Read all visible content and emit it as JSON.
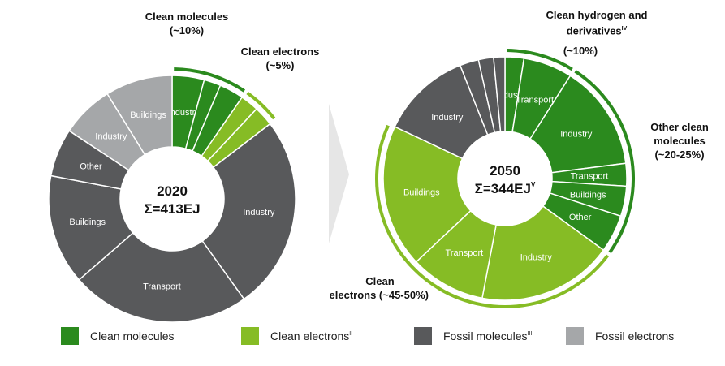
{
  "colors": {
    "clean_molecules": "#2b8a1e",
    "clean_electrons": "#86bc25",
    "fossil_molecules": "#58595b",
    "fossil_electrons": "#a5a7a9"
  },
  "chart_data": [
    {
      "type": "pie",
      "center_line1": "2020",
      "center_line2": "Σ=413EJ",
      "slices": [
        {
          "label": "Industry",
          "category": "clean_molecules",
          "value": 4.2
        },
        {
          "label": "",
          "category": "clean_molecules",
          "value": 2.2
        },
        {
          "label": "",
          "category": "clean_molecules",
          "value": 3.2
        },
        {
          "label": "",
          "category": "clean_electrons",
          "value": 2.4
        },
        {
          "label": "",
          "category": "clean_electrons",
          "value": 2.6
        },
        {
          "label": "Industry",
          "category": "fossil_molecules",
          "value": 25.5
        },
        {
          "label": "Transport",
          "category": "fossil_molecules",
          "value": 23.5
        },
        {
          "label": "Buildings",
          "category": "fossil_molecules",
          "value": 14.4
        },
        {
          "label": "Other",
          "category": "fossil_molecules",
          "value": 6.3
        },
        {
          "label": "Industry",
          "category": "fossil_electrons",
          "value": 6.9
        },
        {
          "label": "Buildings",
          "category": "fossil_electrons",
          "value": 8.8
        }
      ]
    },
    {
      "type": "pie",
      "center_line1": "2050",
      "center_line2": "Σ=344EJ",
      "center_sup": "V",
      "slices": [
        {
          "label": "Industry",
          "category": "clean_molecules",
          "value": 2.5
        },
        {
          "label": "Transport",
          "category": "clean_molecules",
          "value": 6.5
        },
        {
          "label": "Industry",
          "category": "clean_molecules",
          "value": 14.0
        },
        {
          "label": "Transport",
          "category": "clean_molecules",
          "value": 3.0
        },
        {
          "label": "Buildings",
          "category": "clean_molecules",
          "value": 4.0
        },
        {
          "label": "Other",
          "category": "clean_molecules",
          "value": 5.0
        },
        {
          "label": "Industry",
          "category": "clean_electrons",
          "value": 18.0
        },
        {
          "label": "Transport",
          "category": "clean_electrons",
          "value": 10.0
        },
        {
          "label": "Buildings",
          "category": "clean_electrons",
          "value": 19.0
        },
        {
          "label": "Industry",
          "category": "fossil_molecules",
          "value": 12.0
        },
        {
          "label": "",
          "category": "fossil_molecules",
          "value": 2.5
        },
        {
          "label": "",
          "category": "fossil_molecules",
          "value": 2.0
        },
        {
          "label": "",
          "category": "fossil_molecules",
          "value": 1.5
        }
      ]
    }
  ],
  "annotations": {
    "a2020_molecules_l1": "Clean molecules",
    "a2020_molecules_l2": "(~10%)",
    "a2020_electrons_l1": "Clean electrons",
    "a2020_electrons_l2": "(~5%)",
    "a2050_hydrogen_l1": "Clean hydrogen and",
    "a2050_hydrogen_l2": "derivatives",
    "a2050_hydrogen_sup": "IV",
    "a2050_hydrogen_l3": "(~10%)",
    "a2050_other_l1": "Other clean",
    "a2050_other_l2": "molecules",
    "a2050_other_l3": "(~20-25%)",
    "a2050_electrons_l1": "Clean",
    "a2050_electrons_l2": "electrons (~45-50%)"
  },
  "legend": [
    {
      "label": "Clean molecules",
      "sup": "I",
      "category": "clean_molecules"
    },
    {
      "label": "Clean electrons",
      "sup": "II",
      "category": "clean_electrons"
    },
    {
      "label": "Fossil molecules",
      "sup": "III",
      "category": "fossil_molecules"
    },
    {
      "label": "Fossil electrons",
      "sup": "",
      "category": "fossil_electrons"
    }
  ]
}
